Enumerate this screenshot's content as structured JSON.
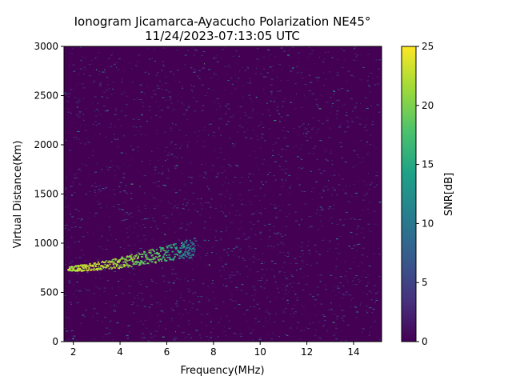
{
  "chart_data": {
    "type": "heatmap",
    "title": "Ionogram Jicamarca-Ayacucho Polarization NE45°",
    "subtitle": "11/24/2023-07:13:05 UTC",
    "xlabel": "Frequency(MHz)",
    "ylabel": "Virtual Distance(Km)",
    "xlim": [
      1.6,
      15.2
    ],
    "ylim": [
      0,
      3000
    ],
    "x_ticks": [
      2,
      4,
      6,
      8,
      10,
      12,
      14
    ],
    "y_ticks": [
      0,
      500,
      1000,
      1500,
      2000,
      2500,
      3000
    ],
    "colorbar": {
      "label": "SNR[dB]",
      "range": [
        0,
        25
      ],
      "ticks": [
        0,
        5,
        10,
        15,
        20,
        25
      ],
      "colormap": "viridis"
    },
    "grid": false,
    "background_level_db": 1,
    "traces": [
      {
        "name": "",
        "points": [
          {
            "x": 1.75,
            "y": 740,
            "snr": 24
          },
          {
            "x": 2.5,
            "y": 760,
            "snr": 25
          },
          {
            "x": 3.5,
            "y": 785,
            "snr": 24
          },
          {
            "x": 4.5,
            "y": 830,
            "snr": 23
          },
          {
            "x": 5.5,
            "y": 880,
            "snr": 21
          },
          {
            "x": 6.5,
            "y": 930,
            "snr": 17
          },
          {
            "x": 7.2,
            "y": 960,
            "snr": 12
          }
        ]
      }
    ]
  },
  "colors": {
    "low": "#440154",
    "mid": "#21918c",
    "high": "#fde725",
    "background": "#ffffff",
    "axis": "#000000"
  }
}
